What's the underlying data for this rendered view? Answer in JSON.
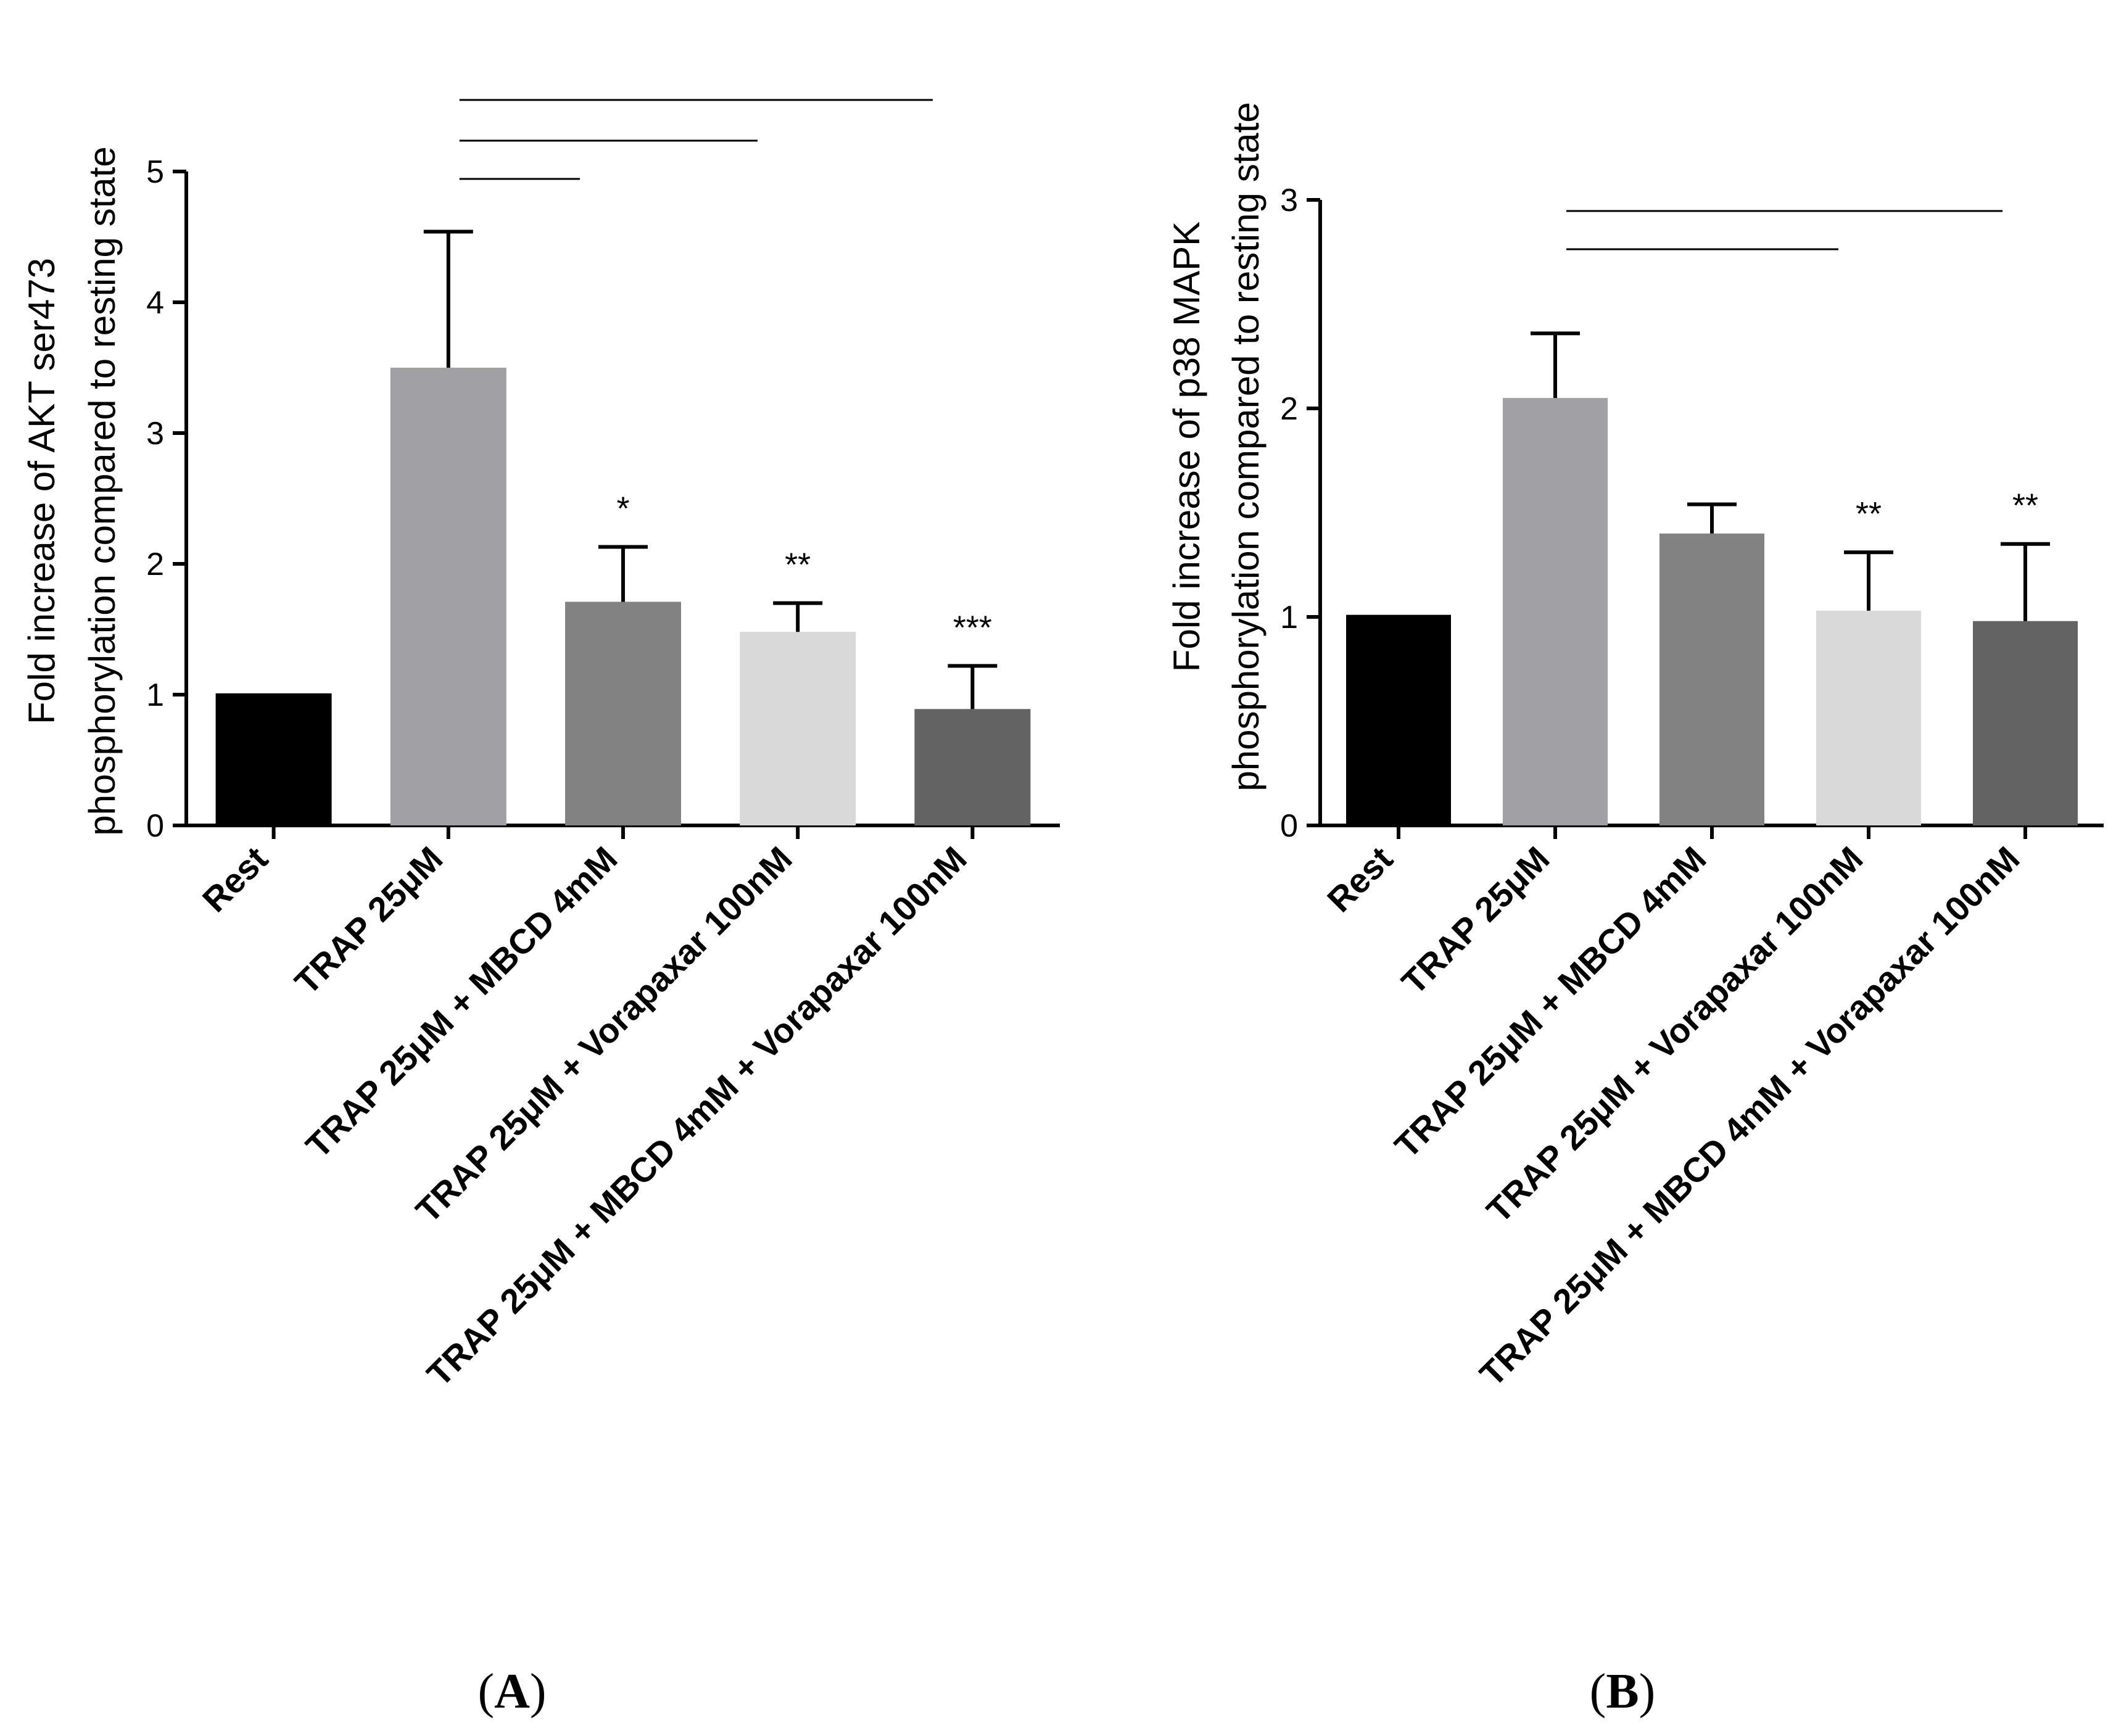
{
  "chart_data": [
    {
      "type": "bar",
      "panel_label": "A",
      "ylabel_lines": [
        "Fold increase of AKT ser473",
        "phosphorylation compared to resting state"
      ],
      "categories": [
        "Rest",
        "TRAP 25μM",
        "TRAP 25μM + MBCD 4mM",
        "TRAP 25μM + Vorapaxar 100nM",
        "TRAP 25μM + MBCD 4mM + Vorapaxar 100nM"
      ],
      "values": [
        1.01,
        3.5,
        1.71,
        1.48,
        0.89
      ],
      "errors": [
        0,
        1.04,
        0.42,
        0.22,
        0.33
      ],
      "significance": [
        "",
        "",
        "*",
        "**",
        "***"
      ],
      "bar_colors": [
        "#000000",
        "#a1a0a5",
        "#828282",
        "#d9d9d9",
        "#636363"
      ],
      "ylim": [
        0,
        5
      ],
      "yticks": [
        0,
        1,
        2,
        3,
        4,
        5
      ],
      "comparisons": [
        [
          1,
          2
        ],
        [
          1,
          3
        ],
        [
          1,
          4
        ]
      ]
    },
    {
      "type": "bar",
      "panel_label": "B",
      "ylabel_lines": [
        "Fold increase of p38 MAPK",
        "phosphorylation compared to resting state"
      ],
      "categories": [
        "Rest",
        "TRAP 25μM",
        "TRAP 25μM + MBCD 4mM",
        "TRAP 25μM + Vorapaxar 100nM",
        "TRAP 25μM + MBCD 4mM + Vorapaxar 100nM"
      ],
      "values": [
        1.01,
        2.05,
        1.4,
        1.03,
        0.98
      ],
      "errors": [
        0,
        0.31,
        0.14,
        0.28,
        0.37
      ],
      "significance": [
        "",
        "",
        "",
        "**",
        "**"
      ],
      "bar_colors": [
        "#000000",
        "#a1a0a5",
        "#828282",
        "#d9d9d9",
        "#636363"
      ],
      "ylim": [
        0,
        3
      ],
      "yticks": [
        0,
        1,
        2,
        3
      ],
      "comparisons": [
        [
          1,
          3
        ],
        [
          1,
          4
        ]
      ]
    }
  ]
}
